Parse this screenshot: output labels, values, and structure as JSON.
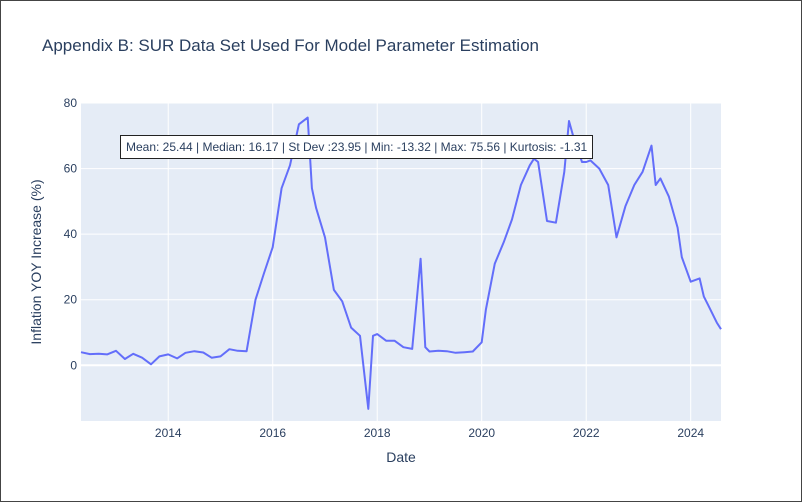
{
  "chart_data": {
    "type": "line",
    "title": "Appendix B: SUR Data Set Used For Model Parameter Estimation",
    "xlabel": "Date",
    "ylabel": "Inflation YOY Increase (%)",
    "xlim": [
      2012.33,
      2024.58
    ],
    "ylim": [
      -17,
      80
    ],
    "x_ticks": [
      2014,
      2016,
      2018,
      2020,
      2022,
      2024
    ],
    "y_ticks": [
      0,
      20,
      40,
      60,
      80
    ],
    "annotation": "Mean: 25.44 | Median: 16.17 | St Dev :23.95 | Min: -13.32 | Max: 75.56 | Kurtosis: -1.31",
    "line_color": "#636efa",
    "series": [
      {
        "name": "Inflation YOY Increase (%)",
        "x": [
          2012.33,
          2012.5,
          2012.67,
          2012.83,
          2013.0,
          2013.17,
          2013.33,
          2013.5,
          2013.67,
          2013.83,
          2014.0,
          2014.17,
          2014.33,
          2014.5,
          2014.67,
          2014.83,
          2015.0,
          2015.17,
          2015.33,
          2015.5,
          2015.67,
          2015.83,
          2016.0,
          2016.17,
          2016.33,
          2016.5,
          2016.67,
          2016.75,
          2016.83,
          2017.0,
          2017.17,
          2017.33,
          2017.5,
          2017.67,
          2017.83,
          2017.92,
          2018.0,
          2018.17,
          2018.33,
          2018.5,
          2018.67,
          2018.83,
          2018.92,
          2019.0,
          2019.17,
          2019.33,
          2019.5,
          2019.67,
          2019.83,
          2020.0,
          2020.08,
          2020.25,
          2020.42,
          2020.58,
          2020.75,
          2020.92,
          2021.0,
          2021.08,
          2021.25,
          2021.42,
          2021.58,
          2021.67,
          2021.75,
          2021.92,
          2022.0,
          2022.08,
          2022.25,
          2022.42,
          2022.58,
          2022.75,
          2022.92,
          2023.08,
          2023.25,
          2023.33,
          2023.42,
          2023.58,
          2023.75,
          2023.83,
          2024.0,
          2024.17,
          2024.25,
          2024.33,
          2024.5,
          2024.58
        ],
        "y": [
          4.0,
          3.4,
          3.5,
          3.3,
          4.4,
          1.9,
          3.5,
          2.3,
          0.3,
          2.7,
          3.3,
          2.1,
          3.8,
          4.3,
          3.9,
          2.3,
          2.7,
          4.9,
          4.4,
          4.3,
          20.0,
          28.0,
          36.0,
          54.0,
          61.0,
          73.5,
          75.56,
          54.0,
          48.0,
          39.0,
          23.0,
          19.5,
          11.5,
          9.0,
          -13.32,
          9.0,
          9.5,
          7.5,
          7.5,
          5.5,
          5.0,
          32.5,
          5.5,
          4.2,
          4.4,
          4.3,
          3.8,
          4.0,
          4.2,
          7.0,
          17.0,
          31.0,
          37.5,
          44.5,
          55.0,
          61.0,
          63.0,
          62.0,
          44.0,
          43.5,
          59.0,
          74.5,
          70.0,
          62.0,
          62.0,
          62.5,
          60.0,
          55.0,
          39.0,
          48.5,
          55.0,
          59.0,
          67.0,
          55.0,
          57.0,
          51.5,
          42.0,
          33.0,
          25.5,
          26.5,
          21.0,
          18.5,
          13.0,
          11.0
        ]
      }
    ]
  }
}
